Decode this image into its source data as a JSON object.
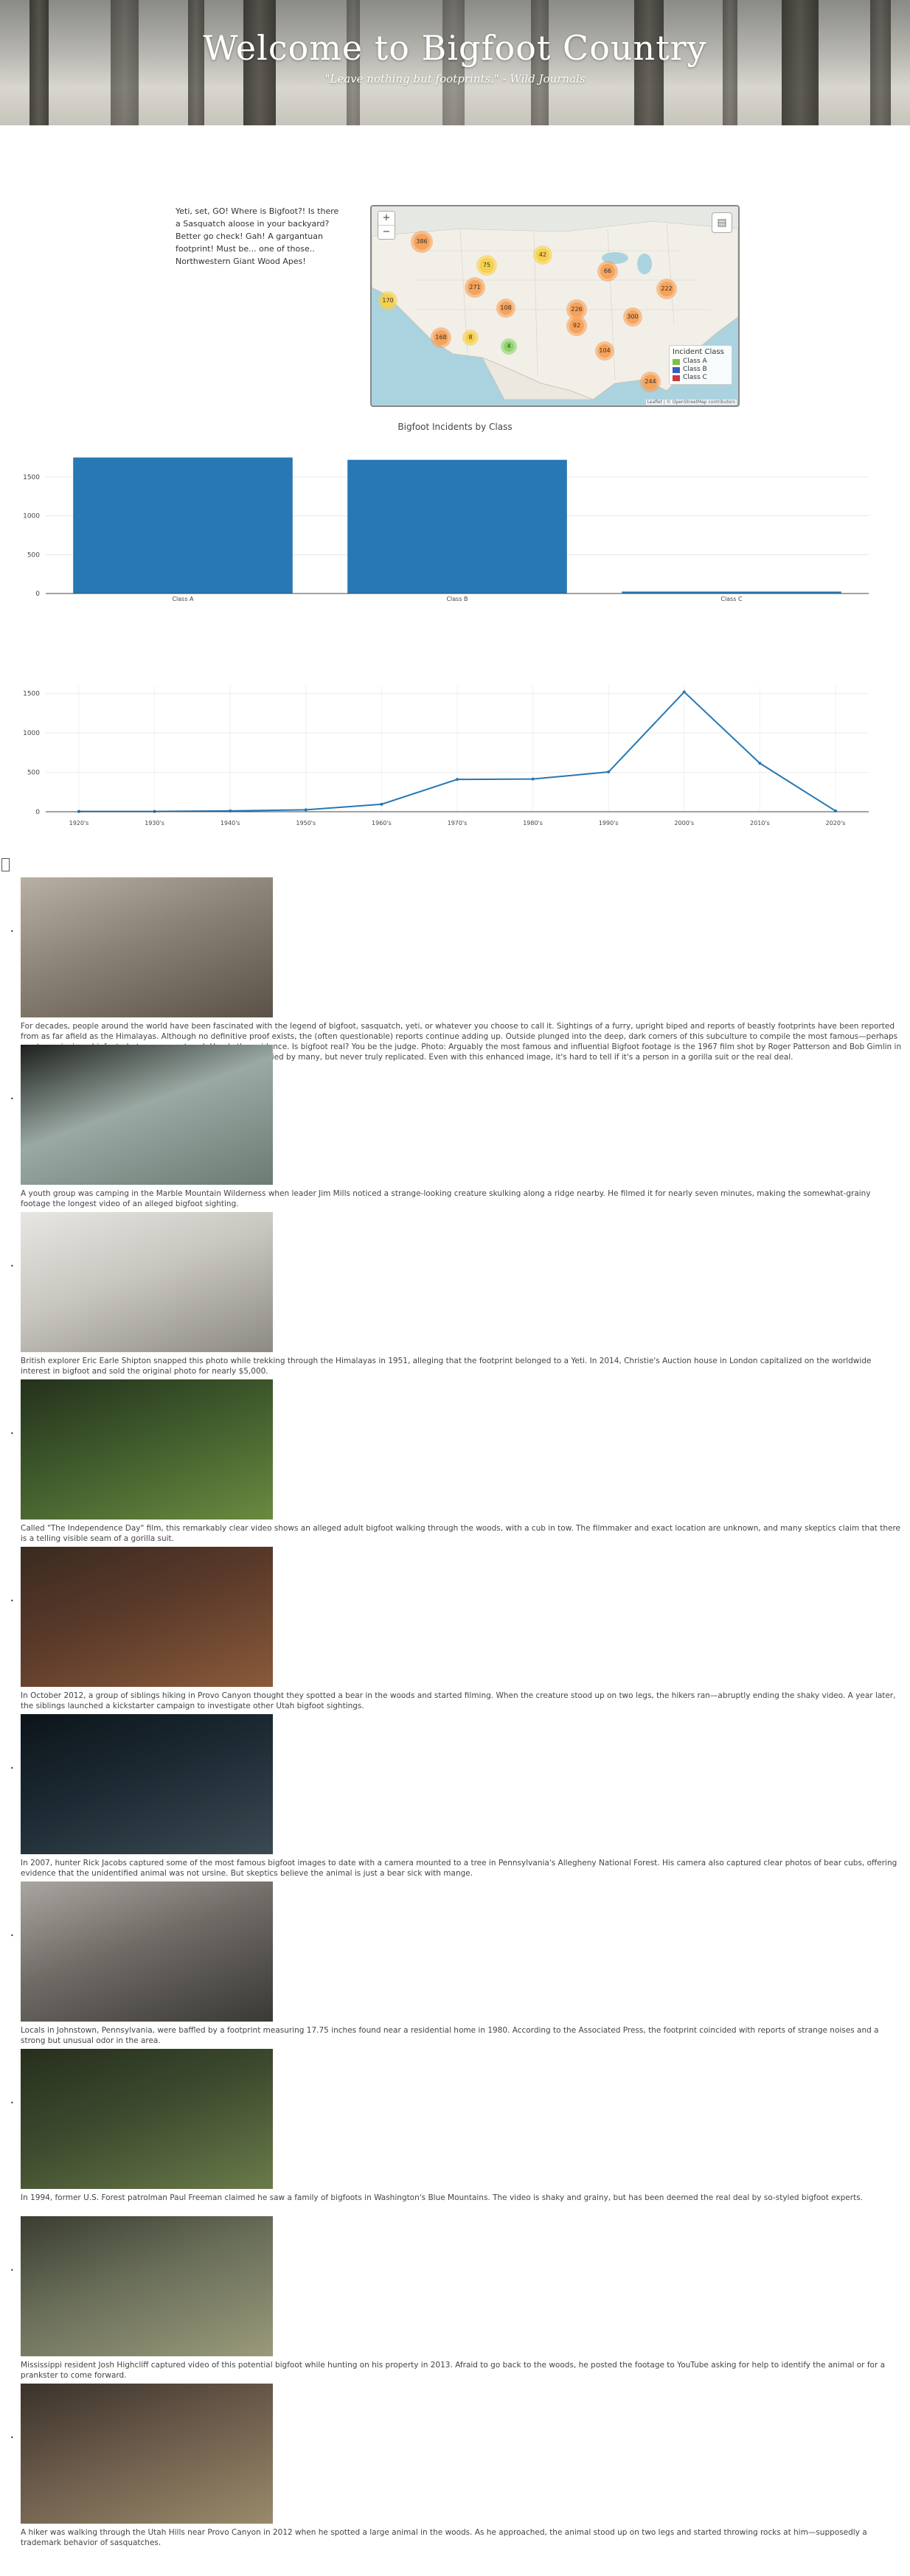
{
  "header": {
    "title": "Welcome to Bigfoot Country",
    "subtitle": "\"Leave nothing but footprints.\" - Wild Journals"
  },
  "intro": {
    "text": "Yeti, set, GO! Where is Bigfoot?! Is there a Sasquatch aloose in your backyard? Better go check! Gah! A gargantuan footprint! Must be... one of those.. Northwestern Giant Wood Apes!"
  },
  "map": {
    "zoom_in": "+",
    "zoom_out": "−",
    "legend_title": "Incident Class",
    "legend": [
      {
        "label": "Class A",
        "color": "#7bc143"
      },
      {
        "label": "Class B",
        "color": "#3b5bc4"
      },
      {
        "label": "Class C",
        "color": "#d0363b"
      }
    ],
    "attribution": "Leaflet | © OpenStreetMap contributors",
    "clusters": [
      "386",
      "75",
      "42",
      "66",
      "222",
      "271",
      "170",
      "108",
      "226",
      "300",
      "168",
      "104",
      "4",
      "244",
      "92",
      "8"
    ]
  },
  "chart_data": [
    {
      "type": "bar",
      "title": "Bigfoot Incidents by Class",
      "categories": [
        "Class A",
        "Class B",
        "Class C"
      ],
      "values": [
        1750,
        1720,
        25
      ],
      "yticks": [
        "0",
        "500",
        "1000",
        "1500"
      ],
      "ylim": [
        0,
        1850
      ],
      "color": "#2778b4"
    },
    {
      "type": "line",
      "title": "",
      "categories": [
        "1920's",
        "1930's",
        "1940's",
        "1950's",
        "1960's",
        "1970's",
        "1980's",
        "1990's",
        "2000's",
        "2010's",
        "2020's"
      ],
      "values": [
        3,
        4,
        10,
        25,
        95,
        410,
        415,
        505,
        1520,
        615,
        10
      ],
      "yticks": [
        "0",
        "500",
        "1000",
        "1500"
      ],
      "ylim": [
        0,
        1600
      ],
      "color": "#2778b4"
    }
  ],
  "stories": [
    {
      "photo": "bigfoot-photo-forest-logs",
      "caption": "For decades, people around the world have been fascinated with the legend of bigfoot, sasquatch, yeti, or whatever you choose to call it. Sightings of a furry, upright biped and reports of beastly footprints have been reported from as far afield as the Himalayas. Although no definitive proof exists, the (often questionable) reports continue adding up. Outside plunged into the deep, dark corners of this subculture to compile the most famous—perhaps most convincing—bigfoot photos ever captured. Here's the evidence. Is bigfoot real? You be the judge. Photo: Arguably the most famous and influential Bigfoot footage is the 1967 film shot by Roger Patterson and Bob Gimlin in Northern California. The \"Bigfoot walk\" it depicts has been parodied by many, but never truly replicated. Even with this enhanced image, it's hard to tell if it's a person in a gorilla suit or the real deal."
    },
    {
      "photo": "bigfoot-photo-ridge",
      "caption": "A youth group was camping in the Marble Mountain Wilderness when leader Jim Mills noticed a strange-looking creature skulking along a ridge nearby. He filmed it for nearly seven minutes, making the somewhat-grainy footage the longest video of an alleged bigfoot sighting."
    },
    {
      "photo": "bigfoot-photo-footprint-snow",
      "caption": "British explorer Eric Earle Shipton snapped this photo while trekking through the Himalayas in 1951, alleging that the footprint belonged to a Yeti. In 2014, Christie's Auction house in London capitalized on the worldwide interest in bigfoot and sold the original photo for nearly $5,000."
    },
    {
      "photo": "bigfoot-photo-woods-cub",
      "caption": "Called \"The Independence Day\" film, this remarkably clear video shows an alleged adult bigfoot walking through the woods, with a cub in tow. The filmmaker and exact location are unknown, and many skeptics claim that there is a telling visible seam of a gorilla suit."
    },
    {
      "photo": "bigfoot-photo-provo-canyon",
      "caption": "In October 2012, a group of siblings hiking in Provo Canyon thought they spotted a bear in the woods and started filming. When the creature stood up on two legs, the hikers ran—abruptly ending the shaky video. A year later, the siblings launched a kickstarter campaign to investigate other Utah bigfoot sightings."
    },
    {
      "photo": "bigfoot-photo-trail-cam",
      "caption": "In 2007, hunter Rick Jacobs captured some of the most famous bigfoot images to date with a camera mounted to a tree in Pennsylvania's Allegheny National Forest. His camera also captured clear photos of bear cubs, offering evidence that the unidentified animal was not ursine. But skeptics believe the animal is just a bear sick with mange."
    },
    {
      "photo": "bigfoot-photo-footprint-hand",
      "caption": "Locals in Johnstown, Pennsylvania, were baffled by a footprint measuring 17.75 inches found near a residential home in 1980. According to the Associated Press, the footprint coincided with reports of strange noises and a strong but unusual odor in the area."
    },
    {
      "photo": "bigfoot-photo-blue-mountains",
      "caption": "In 1994, former U.S. Forest patrolman Paul Freeman claimed he saw a family of bigfoots in Washington's Blue Mountains. The video is shaky and grainy, but has been deemed the real deal by so-styled bigfoot experts."
    },
    {
      "photo": "bigfoot-photo-mississippi",
      "caption": "Mississippi resident Josh Highcliff captured video of this potential bigfoot while hunting on his property in 2013. Afraid to go back to the woods, he posted the footage to YouTube asking for help to identify the animal or for a prankster to come forward."
    },
    {
      "photo": "bigfoot-photo-utah-hills",
      "caption": "A hiker was walking through the Utah Hills near Provo Canyon in 2012 when he spotted a large animal in the woods. As he approached, the animal stood up on two legs and started throwing rocks at him—supposedly a trademark behavior of sasquatches."
    }
  ]
}
